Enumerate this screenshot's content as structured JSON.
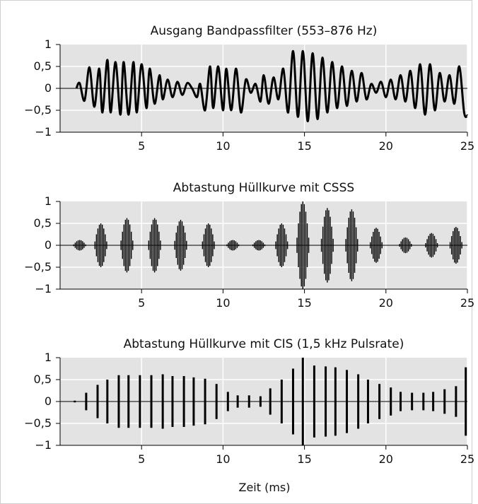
{
  "x_label": "Zeit (ms)",
  "x_ticks": [
    "5",
    "10",
    "15",
    "20",
    "25"
  ],
  "y_ticks": [
    "1",
    "0,5",
    "0",
    "−0,5",
    "−1"
  ],
  "colors": {
    "panel_bg": "#e3e3e3",
    "grid": "#ffffff",
    "signal": "#000000",
    "frame": "#cfcfcf"
  },
  "chart_data": [
    {
      "type": "line",
      "title": "Ausgang Bandpassfilter (553–876 Hz)",
      "xlabel": "",
      "ylabel": "",
      "xlim": [
        0,
        25
      ],
      "ylim": [
        -1,
        1
      ],
      "grid": true,
      "series": [
        {
          "x": [
            1.0,
            1.2,
            1.5,
            1.8,
            2.1,
            2.4,
            2.6,
            2.9,
            3.1,
            3.4,
            3.7,
            3.9,
            4.2,
            4.5,
            4.7,
            5.0,
            5.3,
            5.5,
            5.8,
            6.1,
            6.3,
            6.6,
            6.9,
            7.2,
            7.5,
            7.8,
            8.1,
            8.4,
            8.6,
            8.9,
            9.2,
            9.4,
            9.7,
            10.0,
            10.2,
            10.5,
            10.8,
            11.1,
            11.4,
            11.7,
            12.0,
            12.3,
            12.5,
            12.8,
            13.1,
            13.4,
            13.7,
            14.0,
            14.3,
            14.6,
            14.9,
            15.2,
            15.5,
            15.8,
            16.1,
            16.4,
            16.7,
            17.0,
            17.3,
            17.6,
            17.9,
            18.2,
            18.5,
            18.8,
            19.1,
            19.4,
            19.7,
            20.0,
            20.3,
            20.6,
            20.9,
            21.2,
            21.5,
            21.8,
            22.1,
            22.4,
            22.7,
            23.0,
            23.3,
            23.6,
            23.9,
            24.2,
            24.5,
            24.8,
            25.0
          ],
          "y": [
            0.0,
            0.12,
            -0.28,
            0.48,
            -0.42,
            0.45,
            -0.55,
            0.65,
            -0.55,
            0.6,
            -0.6,
            0.6,
            -0.6,
            0.6,
            -0.55,
            0.55,
            -0.45,
            0.45,
            -0.35,
            0.3,
            -0.25,
            0.2,
            -0.2,
            0.15,
            -0.15,
            0.12,
            0.0,
            -0.2,
            0.1,
            -0.5,
            0.5,
            -0.45,
            0.5,
            -0.5,
            0.45,
            -0.5,
            0.45,
            -0.55,
            0.2,
            -0.1,
            0.1,
            -0.3,
            0.3,
            -0.35,
            0.25,
            -0.25,
            0.45,
            -0.55,
            0.85,
            -0.65,
            0.85,
            -0.75,
            0.8,
            -0.7,
            0.7,
            -0.55,
            0.6,
            -0.45,
            0.5,
            -0.4,
            0.4,
            -0.3,
            0.35,
            -0.25,
            0.1,
            -0.1,
            0.15,
            -0.2,
            0.2,
            -0.25,
            0.3,
            -0.3,
            0.4,
            -0.45,
            0.55,
            -0.6,
            0.55,
            -0.5,
            0.35,
            -0.3,
            0.3,
            -0.35,
            0.5,
            -0.55,
            -0.62
          ]
        }
      ]
    },
    {
      "type": "bar",
      "title": "Abtastung Hüllkurve mit CSSS",
      "xlabel": "",
      "ylabel": "",
      "xlim": [
        0,
        25
      ],
      "ylim": [
        -1,
        1
      ],
      "grid": true,
      "bursts": [
        {
          "center": 1.2,
          "amp": 0.12
        },
        {
          "center": 2.5,
          "amp": 0.5
        },
        {
          "center": 4.1,
          "amp": 0.62
        },
        {
          "center": 5.8,
          "amp": 0.62
        },
        {
          "center": 7.4,
          "amp": 0.58
        },
        {
          "center": 9.1,
          "amp": 0.5
        },
        {
          "center": 10.6,
          "amp": 0.12
        },
        {
          "center": 12.2,
          "amp": 0.12
        },
        {
          "center": 13.6,
          "amp": 0.5
        },
        {
          "center": 14.9,
          "amp": 1.0
        },
        {
          "center": 16.4,
          "amp": 0.85
        },
        {
          "center": 17.9,
          "amp": 0.82
        },
        {
          "center": 19.4,
          "amp": 0.4
        },
        {
          "center": 21.2,
          "amp": 0.18
        },
        {
          "center": 22.8,
          "amp": 0.28
        },
        {
          "center": 24.3,
          "amp": 0.42
        }
      ]
    },
    {
      "type": "bar",
      "title": "Abtastung Hüllkurve mit CIS (1,5 kHz Pulsrate)",
      "xlabel": "Zeit (ms)",
      "ylabel": "",
      "xlim": [
        0,
        25
      ],
      "ylim": [
        -1,
        1
      ],
      "grid": true,
      "x": [
        0.9,
        1.6,
        2.3,
        2.9,
        3.6,
        4.2,
        4.9,
        5.6,
        6.3,
        6.9,
        7.6,
        8.2,
        8.9,
        9.6,
        10.3,
        10.9,
        11.6,
        12.3,
        12.9,
        13.6,
        14.3,
        14.9,
        15.6,
        16.3,
        16.9,
        17.6,
        18.3,
        18.9,
        19.6,
        20.3,
        20.9,
        21.6,
        22.3,
        22.9,
        23.6,
        24.3,
        24.9
      ],
      "values": [
        0.02,
        0.2,
        0.38,
        0.5,
        0.6,
        0.6,
        0.6,
        0.6,
        0.62,
        0.58,
        0.58,
        0.55,
        0.52,
        0.4,
        0.22,
        0.14,
        0.14,
        0.12,
        0.3,
        0.5,
        0.75,
        1.0,
        0.82,
        0.8,
        0.78,
        0.72,
        0.62,
        0.5,
        0.4,
        0.32,
        0.22,
        0.2,
        0.2,
        0.22,
        0.28,
        0.35,
        0.78
      ]
    }
  ]
}
